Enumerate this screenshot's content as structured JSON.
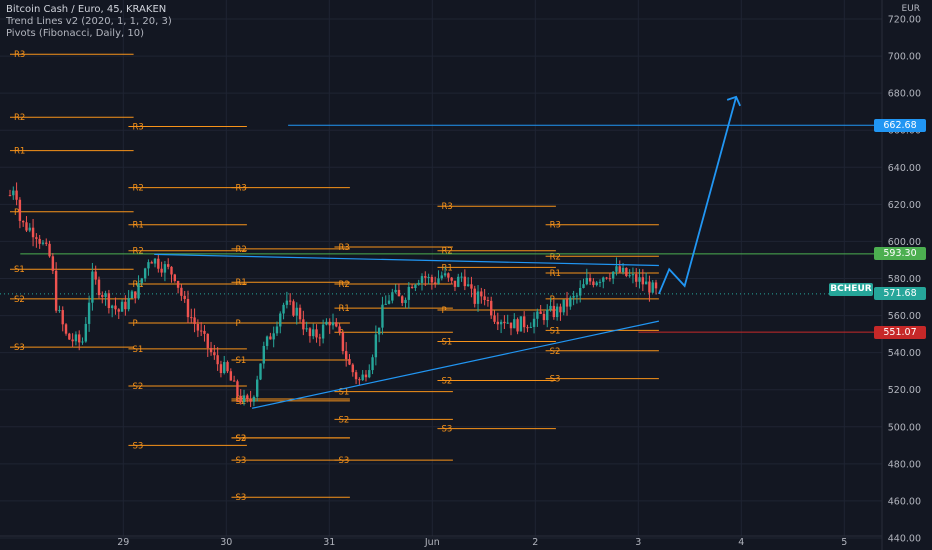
{
  "legend": {
    "title": "Bitcoin Cash / Euro, 45, KRAKEN",
    "study1": "Trend Lines v2 (2020, 1, 1, 20, 3)",
    "study2": "Pivots (Fibonacci, Daily, 10)"
  },
  "currency": "EUR",
  "symbol_badge": "BCHEUR",
  "price_tags": [
    {
      "value": 662.68,
      "label": "662.68",
      "color": "#2196f3"
    },
    {
      "value": 593.3,
      "label": "593.30",
      "color": "#4caf50"
    },
    {
      "value": 571.68,
      "label": "571.68",
      "color": "#26a69a"
    },
    {
      "value": 551.07,
      "label": "551.07",
      "color": "#c62828"
    }
  ],
  "colors": {
    "background": "#131722",
    "grid": "#1f2433",
    "up": "#26a69a",
    "down": "#ef5350",
    "pivot": "#f7931a",
    "trendline": "#2196f3",
    "axis_text": "#b2b5be"
  },
  "chart_data": {
    "type": "candlestick",
    "title": "Bitcoin Cash / Euro, 45, KRAKEN",
    "ylim": [
      440,
      720
    ],
    "xlim": [
      27.9,
      5.65
    ],
    "y_ticks": [
      440,
      460,
      480,
      500,
      520,
      540,
      560,
      580,
      600,
      620,
      640,
      660,
      680,
      700,
      720
    ],
    "y_tick_labels": [
      "440.00",
      "460.00",
      "480.00",
      "500.00",
      "520.00",
      "540.00",
      "560.00",
      "580.00",
      "600.00",
      "620.00",
      "640.00",
      "660.00",
      "680.00",
      "700.00",
      "720.00"
    ],
    "x_ticks": [
      {
        "pos": 29,
        "label": "29"
      },
      {
        "pos": 30,
        "label": "30"
      },
      {
        "pos": 31,
        "label": "31"
      },
      {
        "pos": 32,
        "label": "Jun"
      },
      {
        "pos": 33,
        "label": "2"
      },
      {
        "pos": 34,
        "label": "3"
      },
      {
        "pos": 35,
        "label": "4"
      },
      {
        "pos": 36,
        "label": "5"
      }
    ],
    "price_path": [
      [
        27.9,
        625
      ],
      [
        27.95,
        632
      ],
      [
        28.0,
        610
      ],
      [
        28.15,
        605
      ],
      [
        28.3,
        590
      ],
      [
        28.35,
        565
      ],
      [
        28.45,
        548
      ],
      [
        28.6,
        545
      ],
      [
        28.7,
        580
      ],
      [
        28.8,
        572
      ],
      [
        28.95,
        562
      ],
      [
        29.05,
        568
      ],
      [
        29.15,
        575
      ],
      [
        29.25,
        592
      ],
      [
        29.35,
        588
      ],
      [
        29.5,
        582
      ],
      [
        29.6,
        565
      ],
      [
        29.7,
        555
      ],
      [
        29.8,
        545
      ],
      [
        29.9,
        535
      ],
      [
        30.0,
        530
      ],
      [
        30.1,
        518
      ],
      [
        30.2,
        512
      ],
      [
        30.25,
        515
      ],
      [
        30.35,
        540
      ],
      [
        30.45,
        552
      ],
      [
        30.55,
        566
      ],
      [
        30.7,
        562
      ],
      [
        30.8,
        548
      ],
      [
        30.9,
        550
      ],
      [
        31.0,
        558
      ],
      [
        31.1,
        548
      ],
      [
        31.2,
        532
      ],
      [
        31.3,
        524
      ],
      [
        31.4,
        536
      ],
      [
        31.5,
        560
      ],
      [
        31.6,
        572
      ],
      [
        31.7,
        568
      ],
      [
        31.8,
        578
      ],
      [
        31.9,
        582
      ],
      [
        32.0,
        578
      ],
      [
        32.1,
        582
      ],
      [
        32.2,
        576
      ],
      [
        32.3,
        582
      ],
      [
        32.4,
        568
      ],
      [
        32.5,
        572
      ],
      [
        32.6,
        560
      ],
      [
        32.7,
        558
      ],
      [
        32.8,
        555
      ],
      [
        32.9,
        556
      ],
      [
        33.0,
        558
      ],
      [
        33.1,
        561
      ],
      [
        33.2,
        562
      ],
      [
        33.3,
        566
      ],
      [
        33.4,
        570
      ],
      [
        33.5,
        578
      ],
      [
        33.6,
        580
      ],
      [
        33.7,
        583
      ],
      [
        33.8,
        584
      ],
      [
        33.9,
        581
      ],
      [
        34.0,
        579
      ],
      [
        34.1,
        576
      ],
      [
        34.18,
        572
      ]
    ],
    "projection": [
      [
        34.2,
        571.68
      ],
      [
        34.3,
        585
      ],
      [
        34.45,
        576
      ],
      [
        34.95,
        678
      ]
    ],
    "horizontal_lines": [
      {
        "y": 662.68,
        "x_from": 30.6,
        "color": "#2196f3"
      },
      {
        "y": 593.3,
        "x_from": 28.0,
        "color": "#4caf50"
      },
      {
        "y": 551.07,
        "x_from": 34.0,
        "color": "#c62828"
      }
    ],
    "trendlines": [
      {
        "from": [
          29.3,
          593
        ],
        "to": [
          34.2,
          587
        ]
      },
      {
        "from": [
          30.25,
          510
        ],
        "to": [
          34.2,
          557
        ]
      }
    ],
    "pivot_sets": [
      {
        "x_from": 27.9,
        "x_to": 29.1,
        "levels": [
          {
            "label": "R3",
            "value": 701
          },
          {
            "label": "R2",
            "value": 667
          },
          {
            "label": "R1",
            "value": 649
          },
          {
            "label": "P",
            "value": 616
          },
          {
            "label": "S1",
            "value": 585
          },
          {
            "label": "S2",
            "value": 569
          },
          {
            "label": "S3",
            "value": 543
          }
        ]
      },
      {
        "x_from": 29.05,
        "x_to": 30.2,
        "levels": [
          {
            "label": "R3",
            "value": 662
          },
          {
            "label": "R2",
            "value": 629
          },
          {
            "label": "R1",
            "value": 609
          },
          {
            "label": "R2",
            "value": 595
          },
          {
            "label": "R1",
            "value": 577
          },
          {
            "label": "P",
            "value": 556
          },
          {
            "label": "S1",
            "value": 542
          },
          {
            "label": "S2",
            "value": 522
          },
          {
            "label": "S3",
            "value": 490
          }
        ]
      },
      {
        "x_from": 30.05,
        "x_to": 31.2,
        "levels": [
          {
            "label": "R3",
            "value": 629
          },
          {
            "label": "R2",
            "value": 596
          },
          {
            "label": "R1",
            "value": 578
          },
          {
            "label": "P",
            "value": 556
          },
          {
            "label": "S1",
            "value": 536
          },
          {
            "label": "S2",
            "value": 514
          },
          {
            "label": "S3",
            "value": 494
          },
          {
            "label": "S1",
            "value": 515
          },
          {
            "label": "S2",
            "value": 494
          },
          {
            "label": "S3",
            "value": 482
          },
          {
            "label": "S3",
            "value": 462
          }
        ]
      },
      {
        "x_from": 31.05,
        "x_to": 32.2,
        "levels": [
          {
            "label": "R3",
            "value": 597
          },
          {
            "label": "R2",
            "value": 577
          },
          {
            "label": "R1",
            "value": 564
          },
          {
            "label": "P",
            "value": 551
          },
          {
            "label": "S1",
            "value": 519
          },
          {
            "label": "S2",
            "value": 504
          },
          {
            "label": "S3",
            "value": 482
          }
        ]
      },
      {
        "x_from": 32.05,
        "x_to": 33.2,
        "levels": [
          {
            "label": "R3",
            "value": 619
          },
          {
            "label": "R2",
            "value": 595
          },
          {
            "label": "R1",
            "value": 586
          },
          {
            "label": "P",
            "value": 563
          },
          {
            "label": "S1",
            "value": 546
          },
          {
            "label": "S2",
            "value": 525
          },
          {
            "label": "S3",
            "value": 499
          }
        ]
      },
      {
        "x_from": 33.1,
        "x_to": 34.2,
        "levels": [
          {
            "label": "R3",
            "value": 609
          },
          {
            "label": "R2",
            "value": 592
          },
          {
            "label": "R1",
            "value": 583
          },
          {
            "label": "P",
            "value": 569
          },
          {
            "label": "S1",
            "value": 552
          },
          {
            "label": "S2",
            "value": 541
          },
          {
            "label": "S3",
            "value": 526
          }
        ]
      }
    ]
  }
}
